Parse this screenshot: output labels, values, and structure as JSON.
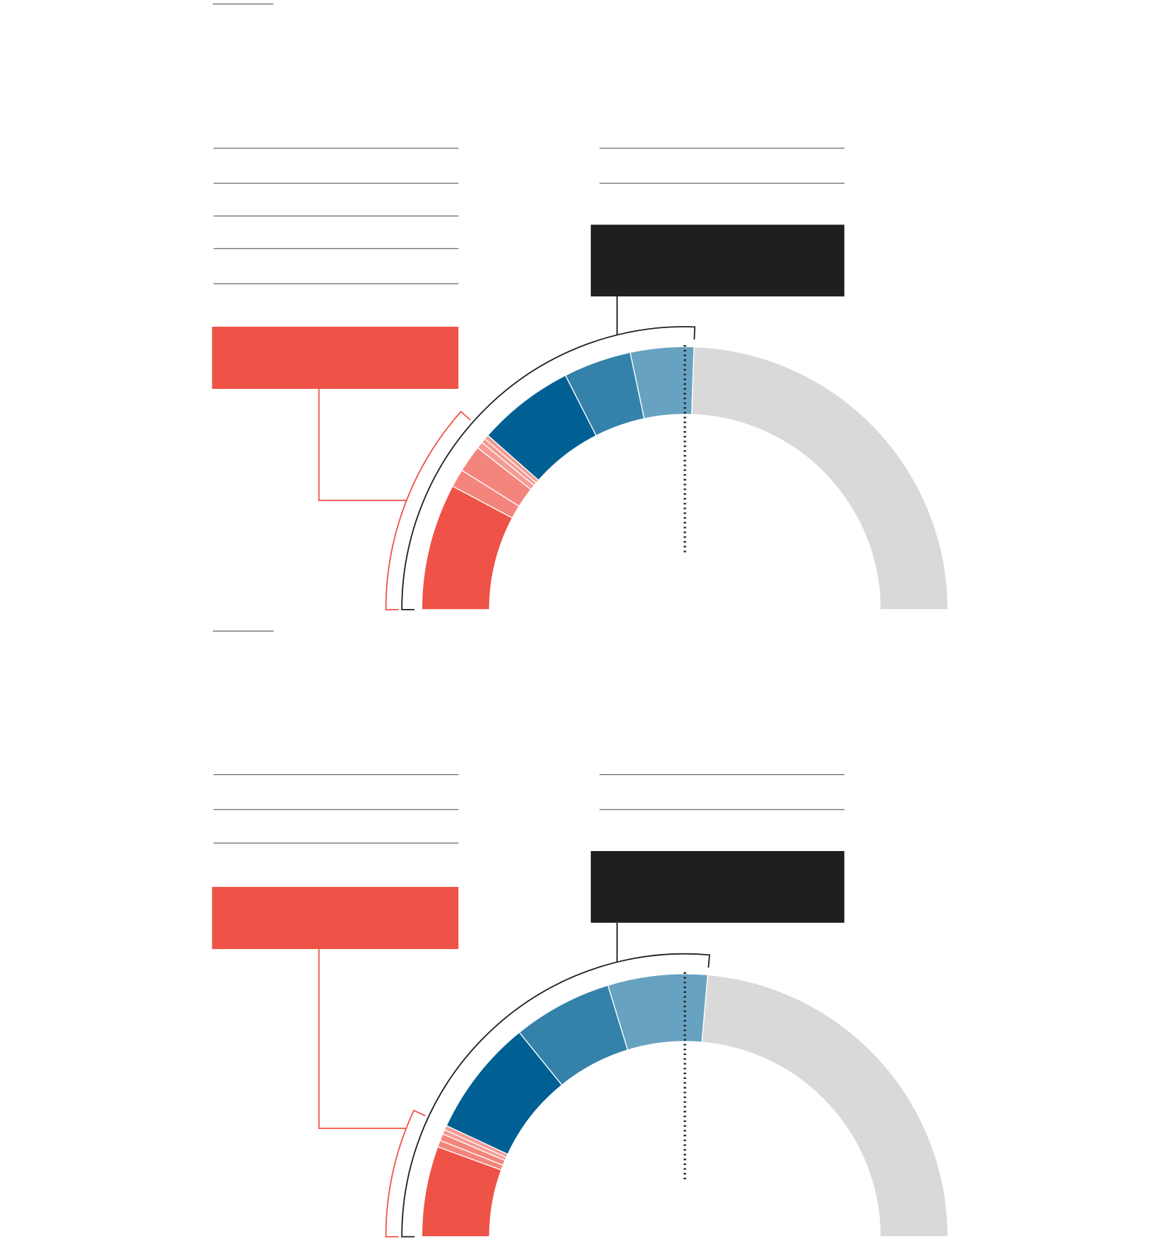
{
  "chart_data": [
    {
      "type": "half-donut",
      "values": [
        28,
        4,
        6,
        1.5,
        1,
        1,
        21.5,
        15,
        14,
        88
      ],
      "colors": [
        "#ef5246",
        "#f3857d",
        "#f3857d",
        "#f59a93",
        "#f59a93",
        "#f59a93",
        "#006093",
        "#3482aa",
        "#68a2c1",
        "#d9d9d9"
      ]
    },
    {
      "type": "half-donut",
      "values": [
        20,
        1.5,
        1.5,
        1,
        1,
        26,
        22,
        22,
        85
      ],
      "colors": [
        "#ef5246",
        "#f3857d",
        "#f3857d",
        "#f59a93",
        "#f59a93",
        "#006093",
        "#3482aa",
        "#68a2c1",
        "#d9d9d9"
      ]
    }
  ]
}
